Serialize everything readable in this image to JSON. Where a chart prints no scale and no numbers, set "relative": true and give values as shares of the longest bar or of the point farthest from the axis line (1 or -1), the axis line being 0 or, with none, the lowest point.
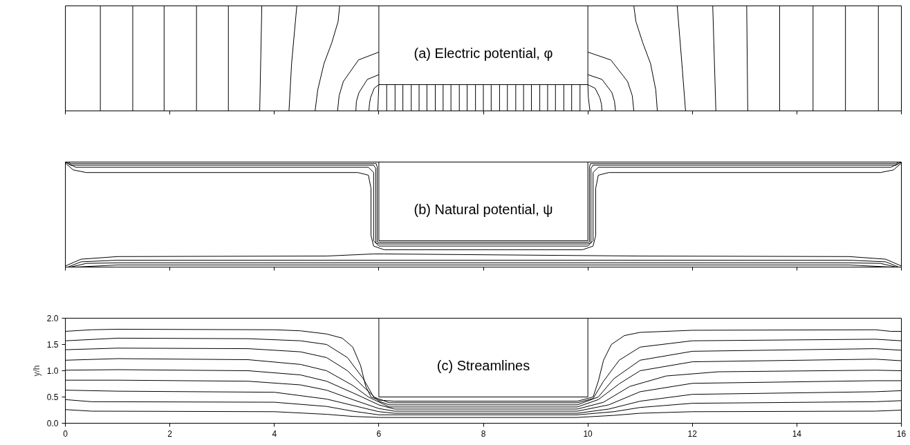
{
  "chart_data": [
    {
      "type": "line",
      "title": "(a) Electric potential, φ",
      "relative": true,
      "xlim": [
        0,
        16
      ],
      "xticks": [
        0,
        2,
        4,
        6,
        8,
        10,
        12,
        14,
        16
      ],
      "tick_labels": false,
      "series": [
        {
          "color": "#000000",
          "x": [
            6,
            6,
            10,
            10
          ],
          "values": [
            1,
            0.25,
            0.25,
            1
          ]
        },
        {
          "color": "#000000",
          "x": [
            0.67,
            0.67
          ],
          "values": [
            0,
            1
          ]
        },
        {
          "color": "#000000",
          "x": [
            1.29,
            1.29
          ],
          "values": [
            0,
            1
          ]
        },
        {
          "color": "#000000",
          "x": [
            1.89,
            1.89
          ],
          "values": [
            0,
            1
          ]
        },
        {
          "color": "#000000",
          "x": [
            2.51,
            2.51
          ],
          "values": [
            0,
            1
          ]
        },
        {
          "color": "#000000",
          "x": [
            3.12,
            3.12
          ],
          "values": [
            0,
            1
          ]
        },
        {
          "color": "#000000",
          "x": [
            3.72,
            3.74,
            3.76
          ],
          "values": [
            0,
            0.5,
            1
          ]
        },
        {
          "color": "#000000",
          "x": [
            4.28,
            4.33,
            4.43
          ],
          "values": [
            0,
            0.45,
            1
          ]
        },
        {
          "color": "#000000",
          "x": [
            4.78,
            4.83,
            4.95,
            5.1,
            5.22,
            5.25
          ],
          "values": [
            0,
            0.2,
            0.45,
            0.65,
            0.85,
            1
          ]
        },
        {
          "color": "#000000",
          "x": [
            6,
            5.61,
            5.32,
            5.24,
            5.21
          ],
          "values": [
            0.56,
            0.485,
            0.28,
            0.145,
            0
          ]
        },
        {
          "color": "#000000",
          "x": [
            6,
            5.78,
            5.62,
            5.57,
            5.56
          ],
          "values": [
            0.345,
            0.3,
            0.175,
            0.09,
            0
          ]
        },
        {
          "color": "#000000",
          "x": [
            6,
            5.91,
            5.84,
            5.82,
            5.81
          ],
          "values": [
            0.25,
            0.215,
            0.125,
            0.065,
            0
          ]
        },
        {
          "color": "#000000",
          "x": [
            6,
            5.99,
            5.98
          ],
          "values": [
            0.25,
            0.125,
            0
          ]
        },
        {
          "color": "#000000",
          "x": [
            6.15,
            6.15
          ],
          "values": [
            0,
            0.25
          ]
        },
        {
          "color": "#000000",
          "x": [
            6.31,
            6.31
          ],
          "values": [
            0,
            0.25
          ]
        },
        {
          "color": "#000000",
          "x": [
            6.46,
            6.46
          ],
          "values": [
            0,
            0.25
          ]
        },
        {
          "color": "#000000",
          "x": [
            6.62,
            6.62
          ],
          "values": [
            0,
            0.25
          ]
        },
        {
          "color": "#000000",
          "x": [
            6.77,
            6.77
          ],
          "values": [
            0,
            0.25
          ]
        },
        {
          "color": "#000000",
          "x": [
            6.92,
            6.92
          ],
          "values": [
            0,
            0.25
          ]
        },
        {
          "color": "#000000",
          "x": [
            7.08,
            7.08
          ],
          "values": [
            0,
            0.25
          ]
        },
        {
          "color": "#000000",
          "x": [
            7.23,
            7.23
          ],
          "values": [
            0,
            0.25
          ]
        },
        {
          "color": "#000000",
          "x": [
            7.38,
            7.38
          ],
          "values": [
            0,
            0.25
          ]
        },
        {
          "color": "#000000",
          "x": [
            7.54,
            7.54
          ],
          "values": [
            0,
            0.25
          ]
        },
        {
          "color": "#000000",
          "x": [
            7.69,
            7.69
          ],
          "values": [
            0,
            0.25
          ]
        },
        {
          "color": "#000000",
          "x": [
            7.85,
            7.85
          ],
          "values": [
            0,
            0.25
          ]
        },
        {
          "color": "#000000",
          "x": [
            8.0,
            8.0
          ],
          "values": [
            0,
            0.25
          ]
        },
        {
          "color": "#000000",
          "x": [
            8.15,
            8.15
          ],
          "values": [
            0,
            0.25
          ]
        },
        {
          "color": "#000000",
          "x": [
            8.31,
            8.31
          ],
          "values": [
            0,
            0.25
          ]
        },
        {
          "color": "#000000",
          "x": [
            8.46,
            8.46
          ],
          "values": [
            0,
            0.25
          ]
        },
        {
          "color": "#000000",
          "x": [
            8.62,
            8.62
          ],
          "values": [
            0,
            0.25
          ]
        },
        {
          "color": "#000000",
          "x": [
            8.77,
            8.77
          ],
          "values": [
            0,
            0.25
          ]
        },
        {
          "color": "#000000",
          "x": [
            8.92,
            8.92
          ],
          "values": [
            0,
            0.25
          ]
        },
        {
          "color": "#000000",
          "x": [
            9.08,
            9.08
          ],
          "values": [
            0,
            0.25
          ]
        },
        {
          "color": "#000000",
          "x": [
            9.23,
            9.23
          ],
          "values": [
            0,
            0.25
          ]
        },
        {
          "color": "#000000",
          "x": [
            9.38,
            9.38
          ],
          "values": [
            0,
            0.25
          ]
        },
        {
          "color": "#000000",
          "x": [
            9.54,
            9.54
          ],
          "values": [
            0,
            0.25
          ]
        },
        {
          "color": "#000000",
          "x": [
            9.69,
            9.69
          ],
          "values": [
            0,
            0.25
          ]
        },
        {
          "color": "#000000",
          "x": [
            9.85,
            9.85
          ],
          "values": [
            0,
            0.25
          ]
        },
        {
          "color": "#000000",
          "x": [
            10,
            10.01,
            10.04
          ],
          "values": [
            0.25,
            0.125,
            0
          ]
        },
        {
          "color": "#000000",
          "x": [
            10,
            10.14,
            10.23,
            10.26,
            10.27
          ],
          "values": [
            0.25,
            0.215,
            0.125,
            0.065,
            0
          ]
        },
        {
          "color": "#000000",
          "x": [
            10,
            10.27,
            10.46,
            10.51,
            10.53
          ],
          "values": [
            0.345,
            0.3,
            0.175,
            0.09,
            0
          ]
        },
        {
          "color": "#000000",
          "x": [
            10,
            10.44,
            10.76,
            10.85,
            10.88
          ],
          "values": [
            0.56,
            0.485,
            0.28,
            0.145,
            0
          ]
        },
        {
          "color": "#000000",
          "x": [
            11.33,
            11.3,
            11.2,
            11.05,
            10.92,
            10.88
          ],
          "values": [
            0,
            0.2,
            0.45,
            0.65,
            0.85,
            1
          ]
        },
        {
          "color": "#000000",
          "x": [
            11.87,
            11.8,
            11.71
          ],
          "values": [
            0,
            0.45,
            1
          ]
        },
        {
          "color": "#000000",
          "x": [
            12.45,
            12.42,
            12.39
          ],
          "values": [
            0,
            0.5,
            1
          ]
        },
        {
          "color": "#000000",
          "x": [
            13.06,
            13.04
          ],
          "values": [
            0,
            1
          ]
        },
        {
          "color": "#000000",
          "x": [
            13.67,
            13.67
          ],
          "values": [
            0,
            1
          ]
        },
        {
          "color": "#000000",
          "x": [
            14.31,
            14.31
          ],
          "values": [
            0,
            1
          ]
        },
        {
          "color": "#000000",
          "x": [
            14.93,
            14.93
          ],
          "values": [
            0,
            1
          ]
        },
        {
          "color": "#000000",
          "x": [
            15.56,
            15.56
          ],
          "values": [
            0,
            1
          ]
        }
      ]
    },
    {
      "type": "line",
      "title": "(b) Natural potential, ψ",
      "relative": true,
      "xlim": [
        0,
        16
      ],
      "xticks": [
        0,
        2,
        4,
        6,
        8,
        10,
        12,
        14,
        16
      ],
      "tick_labels": false,
      "series": [
        {
          "color": "#000000",
          "x": [
            6,
            6,
            10,
            10
          ],
          "values": [
            1,
            0.25,
            0.25,
            1
          ]
        },
        {
          "color": "#000000",
          "x": [
            0,
            0.15,
            0.4,
            5.6,
            5.8,
            5.85,
            5.85,
            5.9,
            6.1,
            9.9,
            10.1,
            10.15,
            10.15,
            10.2,
            10.4,
            15.6,
            15.85,
            16
          ],
          "values": [
            0.99,
            0.925,
            0.9,
            0.9,
            0.875,
            0.75,
            0.3,
            0.2,
            0.165,
            0.165,
            0.2,
            0.3,
            0.75,
            0.875,
            0.9,
            0.9,
            0.925,
            0.99
          ]
        },
        {
          "color": "#000000",
          "x": [
            0,
            0.2,
            5.8,
            5.9,
            5.9,
            6,
            10,
            10.1,
            10.1,
            10.2,
            15.8,
            16
          ],
          "values": [
            1,
            0.95,
            0.95,
            0.9,
            0.25,
            0.2,
            0.2,
            0.25,
            0.9,
            0.95,
            0.95,
            1
          ]
        },
        {
          "color": "#000000",
          "x": [
            0,
            0.1,
            5.9,
            5.94,
            5.94,
            6,
            10,
            10.06,
            10.06,
            10.1,
            15.9,
            16
          ],
          "values": [
            1,
            0.97,
            0.97,
            0.94,
            0.23,
            0.22,
            0.22,
            0.23,
            0.94,
            0.97,
            0.97,
            1
          ]
        },
        {
          "color": "#000000",
          "x": [
            0.05,
            0.1,
            5.95,
            5.97,
            5.97,
            6,
            10,
            10.03,
            10.03,
            10.05,
            15.9,
            15.95
          ],
          "values": [
            1,
            0.985,
            0.985,
            0.95,
            0.24,
            0.235,
            0.235,
            0.24,
            0.95,
            0.985,
            0.985,
            1
          ]
        },
        {
          "color": "#000000",
          "x": [
            0,
            0.3,
            1,
            5,
            5.9,
            6.1,
            11,
            15,
            15.7,
            16
          ],
          "values": [
            0.01,
            0.075,
            0.1,
            0.105,
            0.125,
            0.125,
            0.105,
            0.1,
            0.075,
            0.01
          ]
        },
        {
          "color": "#000000",
          "x": [
            0.05,
            0.3,
            1,
            15,
            15.7,
            15.95
          ],
          "values": [
            0,
            0.05,
            0.065,
            0.065,
            0.05,
            0
          ]
        },
        {
          "color": "#000000",
          "x": [
            0.1,
            0.4,
            1,
            15,
            15.6,
            15.9
          ],
          "values": [
            0,
            0.035,
            0.04,
            0.04,
            0.035,
            0
          ]
        },
        {
          "color": "#000000",
          "x": [
            0.2,
            1,
            15,
            15.8
          ],
          "values": [
            0,
            0.02,
            0.02,
            0
          ]
        }
      ]
    },
    {
      "type": "line",
      "title": "(c) Streamlines",
      "ylabel": "y/h",
      "xlim": [
        0,
        16
      ],
      "ylim": [
        0,
        2
      ],
      "xticks": [
        0,
        2,
        4,
        6,
        8,
        10,
        12,
        14,
        16
      ],
      "yticks": [
        {
          "value": 0,
          "label": "0.0"
        },
        0.5,
        {
          "value": 1,
          "label": "1.0"
        },
        1.5,
        {
          "value": 2,
          "label": "2.0"
        }
      ],
      "series": [
        {
          "color": "#000000",
          "x": [
            6,
            6,
            10,
            10
          ],
          "values": [
            2,
            0.5,
            0.5,
            2
          ]
        },
        {
          "color": "#000000",
          "x": [
            0,
            0.5,
            1,
            4,
            4.5,
            5,
            5.3,
            5.5,
            5.65,
            5.75,
            5.85,
            6,
            6.3,
            9.8,
            10.1,
            10.2,
            10.3,
            10.45,
            10.7,
            11,
            12,
            15.5,
            15.8,
            16
          ],
          "values": [
            1.75,
            1.78,
            1.79,
            1.78,
            1.76,
            1.7,
            1.62,
            1.45,
            1.1,
            0.7,
            0.5,
            0.44,
            0.42,
            0.42,
            0.5,
            0.8,
            1.2,
            1.5,
            1.67,
            1.73,
            1.77,
            1.78,
            1.75,
            1.75
          ]
        },
        {
          "color": "#000000",
          "x": [
            0,
            1,
            3.5,
            4.5,
            5,
            5.4,
            5.7,
            5.9,
            6.2,
            9.8,
            10.1,
            10.3,
            10.6,
            11,
            12,
            15.5,
            16
          ],
          "values": [
            1.57,
            1.62,
            1.61,
            1.57,
            1.5,
            1.25,
            0.85,
            0.5,
            0.39,
            0.39,
            0.47,
            0.8,
            1.2,
            1.45,
            1.57,
            1.6,
            1.57
          ]
        },
        {
          "color": "#000000",
          "x": [
            0,
            1,
            3.5,
            4.5,
            5,
            5.4,
            5.7,
            6,
            6.2,
            9.8,
            10.2,
            10.5,
            11,
            12,
            15.5,
            16
          ],
          "values": [
            1.4,
            1.43,
            1.42,
            1.36,
            1.25,
            1.0,
            0.7,
            0.42,
            0.35,
            0.35,
            0.5,
            0.85,
            1.2,
            1.37,
            1.42,
            1.39
          ]
        },
        {
          "color": "#000000",
          "x": [
            0,
            1,
            3.5,
            4.5,
            5,
            5.5,
            5.8,
            6.2,
            9.8,
            10.2,
            10.6,
            11,
            12,
            15.5,
            16
          ],
          "values": [
            1.2,
            1.23,
            1.21,
            1.12,
            1.0,
            0.72,
            0.5,
            0.31,
            0.31,
            0.45,
            0.75,
            1.0,
            1.17,
            1.22,
            1.19
          ]
        },
        {
          "color": "#000000",
          "x": [
            0,
            1,
            3.5,
            4.5,
            5,
            5.5,
            6,
            6.3,
            9.8,
            10.3,
            10.8,
            11.5,
            12.5,
            15.5,
            16
          ],
          "values": [
            1.01,
            1.02,
            1.0,
            0.92,
            0.8,
            0.58,
            0.35,
            0.27,
            0.27,
            0.4,
            0.7,
            0.9,
            0.98,
            1.01,
            1.0
          ]
        },
        {
          "color": "#000000",
          "x": [
            0,
            1,
            3.5,
            4.5,
            5,
            5.5,
            6,
            6.3,
            9.8,
            10.4,
            11,
            12,
            15.5,
            16
          ],
          "values": [
            0.82,
            0.82,
            0.8,
            0.73,
            0.63,
            0.45,
            0.28,
            0.23,
            0.23,
            0.35,
            0.6,
            0.76,
            0.81,
            0.81
          ]
        },
        {
          "color": "#000000",
          "x": [
            0,
            1,
            4,
            5,
            5.5,
            6,
            6.3,
            9.8,
            10.4,
            11,
            12,
            15.5,
            16
          ],
          "values": [
            0.63,
            0.61,
            0.59,
            0.46,
            0.34,
            0.22,
            0.19,
            0.19,
            0.27,
            0.42,
            0.55,
            0.6,
            0.62
          ]
        },
        {
          "color": "#000000",
          "x": [
            0,
            0.5,
            4,
            5,
            5.5,
            6,
            9.8,
            10.5,
            11,
            12,
            15.5,
            16
          ],
          "values": [
            0.45,
            0.41,
            0.4,
            0.32,
            0.23,
            0.16,
            0.16,
            0.22,
            0.3,
            0.38,
            0.41,
            0.43
          ]
        },
        {
          "color": "#000000",
          "x": [
            0,
            0.5,
            4,
            5,
            5.5,
            6,
            9.8,
            10.5,
            11,
            12,
            15.5,
            16
          ],
          "values": [
            0.26,
            0.23,
            0.22,
            0.17,
            0.13,
            0.11,
            0.11,
            0.15,
            0.19,
            0.22,
            0.23,
            0.25
          ]
        }
      ]
    }
  ]
}
